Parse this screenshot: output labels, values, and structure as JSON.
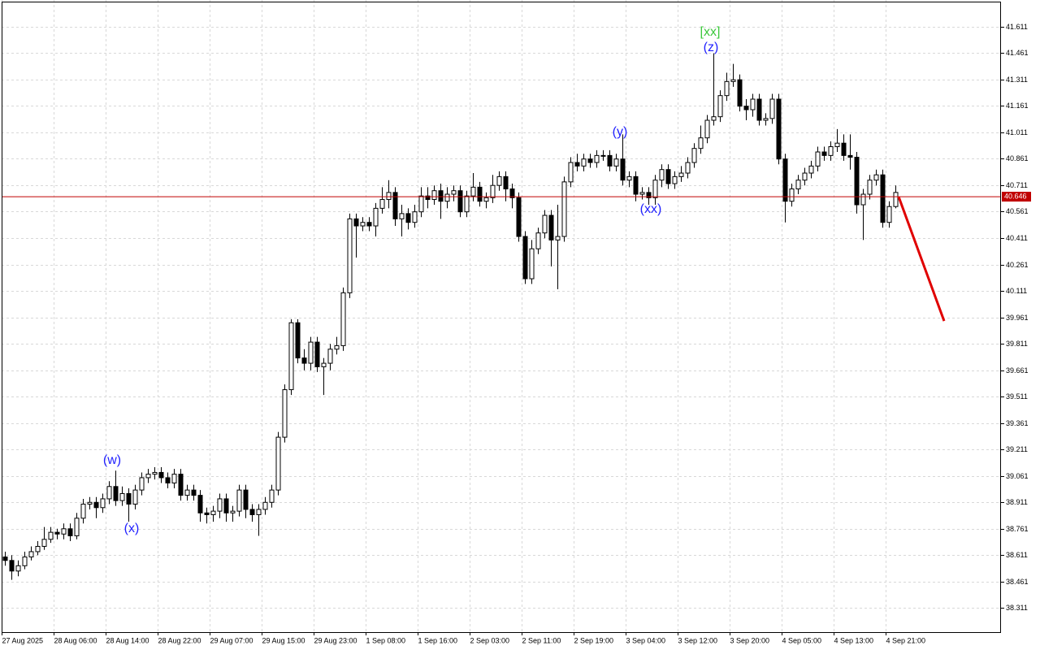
{
  "chart_data": {
    "type": "candlestick",
    "categories": [
      "27 Aug 2025",
      null,
      null,
      null,
      null,
      null,
      null,
      null,
      "28 Aug 06:00",
      null,
      null,
      null,
      null,
      null,
      null,
      null,
      "28 Aug 14:00",
      null,
      null,
      null,
      null,
      null,
      null,
      null,
      "28 Aug 22:00",
      null,
      null,
      null,
      null,
      null,
      null,
      null,
      "29 Aug 07:00",
      null,
      null,
      null,
      null,
      null,
      null,
      null,
      "29 Aug 15:00",
      null,
      null,
      null,
      null,
      null,
      null,
      null,
      "29 Aug 23:00",
      null,
      null,
      null,
      null,
      null,
      null,
      null,
      "1 Sep 08:00",
      null,
      null,
      null,
      null,
      null,
      null,
      null,
      "1 Sep 16:00",
      null,
      null,
      null,
      null,
      null,
      null,
      null,
      "2 Sep 03:00",
      null,
      null,
      null,
      null,
      null,
      null,
      null,
      "2 Sep 11:00",
      null,
      null,
      null,
      null,
      null,
      null,
      null,
      "2 Sep 19:00",
      null,
      null,
      null,
      null,
      null,
      null,
      null,
      "3 Sep 04:00",
      null,
      null,
      null,
      null,
      null,
      null,
      null,
      "3 Sep 12:00",
      null,
      null,
      null,
      null,
      null,
      null,
      null,
      "3 Sep 20:00",
      null,
      null,
      null,
      null,
      null,
      null,
      null,
      "4 Sep 05:00",
      null,
      null,
      null,
      null,
      null,
      null,
      null,
      "4 Sep 13:00",
      null,
      null,
      null,
      null,
      null,
      null,
      null,
      "4 Sep 21:00",
      null
    ],
    "open": [
      38.6,
      38.58,
      38.52,
      38.55,
      38.6,
      38.63,
      38.66,
      38.7,
      38.74,
      38.73,
      38.76,
      38.72,
      38.82,
      38.9,
      38.91,
      38.88,
      38.93,
      39.0,
      38.92,
      38.96,
      38.9,
      38.98,
      39.05,
      39.07,
      39.08,
      39.05,
      39.02,
      39.07,
      38.95,
      38.98,
      38.95,
      38.85,
      38.84,
      38.86,
      38.93,
      38.85,
      38.86,
      38.98,
      38.87,
      38.84,
      38.87,
      38.91,
      38.98,
      39.28,
      39.55,
      39.93,
      39.73,
      39.7,
      39.82,
      39.68,
      39.7,
      39.78,
      39.8,
      40.1,
      40.52,
      40.48,
      40.5,
      40.48,
      40.58,
      40.63,
      40.67,
      40.52,
      40.55,
      40.5,
      40.56,
      40.65,
      40.63,
      40.68,
      40.62,
      40.66,
      40.68,
      40.56,
      40.65,
      40.7,
      40.62,
      40.64,
      40.71,
      40.76,
      40.69,
      40.64,
      40.42,
      40.18,
      40.35,
      40.44,
      40.54,
      40.4,
      40.42,
      40.73,
      40.84,
      40.82,
      40.86,
      40.84,
      40.88,
      40.88,
      40.82,
      40.86,
      40.74,
      40.76,
      40.66,
      40.67,
      40.64,
      40.74,
      40.8,
      40.72,
      40.76,
      40.78,
      40.84,
      40.92,
      40.98,
      41.08,
      41.1,
      41.22,
      41.3,
      41.31,
      41.16,
      41.14,
      41.2,
      41.08,
      41.09,
      41.2,
      40.86,
      40.62,
      40.69,
      40.74,
      40.78,
      40.82,
      40.9,
      40.88,
      40.93,
      40.95,
      40.88,
      40.87,
      40.6,
      40.66,
      40.74,
      40.77,
      40.5,
      40.59
    ],
    "high": [
      38.63,
      38.61,
      38.58,
      38.63,
      38.66,
      38.69,
      38.77,
      38.77,
      38.76,
      38.79,
      38.79,
      38.85,
      38.93,
      38.94,
      38.94,
      38.96,
      39.03,
      39.09,
      39.0,
      38.99,
      39.01,
      39.08,
      39.1,
      39.11,
      39.11,
      39.08,
      39.1,
      39.1,
      39.01,
      39.01,
      38.98,
      38.88,
      38.89,
      38.96,
      38.96,
      38.89,
      39.01,
      39.01,
      38.9,
      38.9,
      38.94,
      39.01,
      39.31,
      39.58,
      39.95,
      39.95,
      39.78,
      39.85,
      39.85,
      39.73,
      39.81,
      39.85,
      40.13,
      40.55,
      40.55,
      40.53,
      40.53,
      40.61,
      40.7,
      40.74,
      40.7,
      40.6,
      40.58,
      40.6,
      40.7,
      40.7,
      40.71,
      40.72,
      40.7,
      40.71,
      40.71,
      40.68,
      40.78,
      40.73,
      40.67,
      40.77,
      40.79,
      40.79,
      40.72,
      40.67,
      40.45,
      40.4,
      40.47,
      40.57,
      40.57,
      40.6,
      40.76,
      40.87,
      40.89,
      40.89,
      40.89,
      40.91,
      40.91,
      40.91,
      40.89,
      41.0,
      40.79,
      40.79,
      40.7,
      40.7,
      40.77,
      40.83,
      40.83,
      40.79,
      40.82,
      40.87,
      40.95,
      41.05,
      41.11,
      41.46,
      41.25,
      41.35,
      41.4,
      41.34,
      41.2,
      41.23,
      41.23,
      41.12,
      41.23,
      41.23,
      40.89,
      40.72,
      40.77,
      40.81,
      40.85,
      40.93,
      40.93,
      40.96,
      41.03,
      41.0,
      41.0,
      40.9,
      40.69,
      40.77,
      40.8,
      40.8,
      40.62,
      40.71
    ],
    "low": [
      38.55,
      38.47,
      38.49,
      38.53,
      38.58,
      38.61,
      38.64,
      38.68,
      38.7,
      38.7,
      38.69,
      38.7,
      38.79,
      38.87,
      38.82,
      38.85,
      38.9,
      38.89,
      38.89,
      38.8,
      38.87,
      38.95,
      39.02,
      39.04,
      39.02,
      38.99,
      38.99,
      38.92,
      38.92,
      38.92,
      38.8,
      38.79,
      38.8,
      38.82,
      38.8,
      38.8,
      38.83,
      38.82,
      38.8,
      38.72,
      38.84,
      38.88,
      38.95,
      39.25,
      39.52,
      39.7,
      39.66,
      39.66,
      39.65,
      39.52,
      39.66,
      39.75,
      39.77,
      40.07,
      40.3,
      40.45,
      40.45,
      40.42,
      40.55,
      40.58,
      40.48,
      40.42,
      40.46,
      40.47,
      40.53,
      40.58,
      40.6,
      40.52,
      40.58,
      40.62,
      40.53,
      40.53,
      40.62,
      40.59,
      40.58,
      40.61,
      40.68,
      40.62,
      40.58,
      40.39,
      40.15,
      40.15,
      40.32,
      40.41,
      40.25,
      40.12,
      40.39,
      40.7,
      40.79,
      40.79,
      40.81,
      40.81,
      40.85,
      40.79,
      40.79,
      40.71,
      40.7,
      40.62,
      40.63,
      40.6,
      40.6,
      40.7,
      40.69,
      40.69,
      40.73,
      40.75,
      40.81,
      40.89,
      40.95,
      41.05,
      41.07,
      41.19,
      41.27,
      41.13,
      41.08,
      41.1,
      41.05,
      41.05,
      41.06,
      40.83,
      40.5,
      40.59,
      40.66,
      40.71,
      40.75,
      40.79,
      40.85,
      40.85,
      40.9,
      40.85,
      40.8,
      40.55,
      40.4,
      40.63,
      40.71,
      40.47,
      40.47,
      40.58
    ],
    "close": [
      38.58,
      38.52,
      38.55,
      38.6,
      38.63,
      38.66,
      38.7,
      38.74,
      38.73,
      38.76,
      38.72,
      38.82,
      38.9,
      38.91,
      38.88,
      38.93,
      39.0,
      38.92,
      38.96,
      38.9,
      38.98,
      39.05,
      39.07,
      39.08,
      39.05,
      39.02,
      39.07,
      38.95,
      38.98,
      38.95,
      38.85,
      38.84,
      38.86,
      38.93,
      38.85,
      38.86,
      38.98,
      38.87,
      38.84,
      38.87,
      38.91,
      38.98,
      39.28,
      39.55,
      39.93,
      39.73,
      39.7,
      39.82,
      39.68,
      39.7,
      39.78,
      39.8,
      40.1,
      40.52,
      40.48,
      40.5,
      40.48,
      40.58,
      40.63,
      40.67,
      40.52,
      40.55,
      40.5,
      40.56,
      40.65,
      40.63,
      40.68,
      40.62,
      40.66,
      40.68,
      40.56,
      40.65,
      40.7,
      40.62,
      40.64,
      40.71,
      40.76,
      40.69,
      40.64,
      40.42,
      40.18,
      40.35,
      40.44,
      40.54,
      40.4,
      40.42,
      40.73,
      40.84,
      40.82,
      40.86,
      40.84,
      40.88,
      40.88,
      40.82,
      40.86,
      40.74,
      40.76,
      40.66,
      40.67,
      40.64,
      40.74,
      40.8,
      40.72,
      40.76,
      40.78,
      40.84,
      40.92,
      40.98,
      41.08,
      41.1,
      41.22,
      41.3,
      41.31,
      41.16,
      41.14,
      41.2,
      41.08,
      41.09,
      41.2,
      40.86,
      40.62,
      40.69,
      40.74,
      40.78,
      40.82,
      40.9,
      40.88,
      40.93,
      40.95,
      40.88,
      40.87,
      40.6,
      40.66,
      40.74,
      40.77,
      40.5,
      40.59,
      40.67
    ],
    "up_color": "#ffffff",
    "down_color": "#000000",
    "edge_color": "#000000",
    "ylim": [
      38.173,
      41.763
    ],
    "yticks": [
      38.311,
      38.461,
      38.611,
      38.761,
      38.911,
      39.061,
      39.211,
      39.361,
      39.511,
      39.661,
      39.811,
      39.961,
      40.111,
      40.261,
      40.411,
      40.561,
      40.711,
      40.861,
      41.011,
      41.161,
      41.311,
      41.461,
      41.611
    ],
    "grid": true,
    "price_line": 40.646,
    "price_line_color": "#c00000",
    "forecast": [
      40.646,
      39.94
    ],
    "forecast_color": "#e00000",
    "annotations": [
      "(w)",
      "(x)",
      "(y)",
      "(xx)",
      "[xx]",
      "(z)"
    ],
    "annotation_colors": [
      "#1f1fff",
      "#1f1fff",
      "#1f1fff",
      "#1f1fff",
      "#3cc83c",
      "#1f1fff"
    ]
  }
}
